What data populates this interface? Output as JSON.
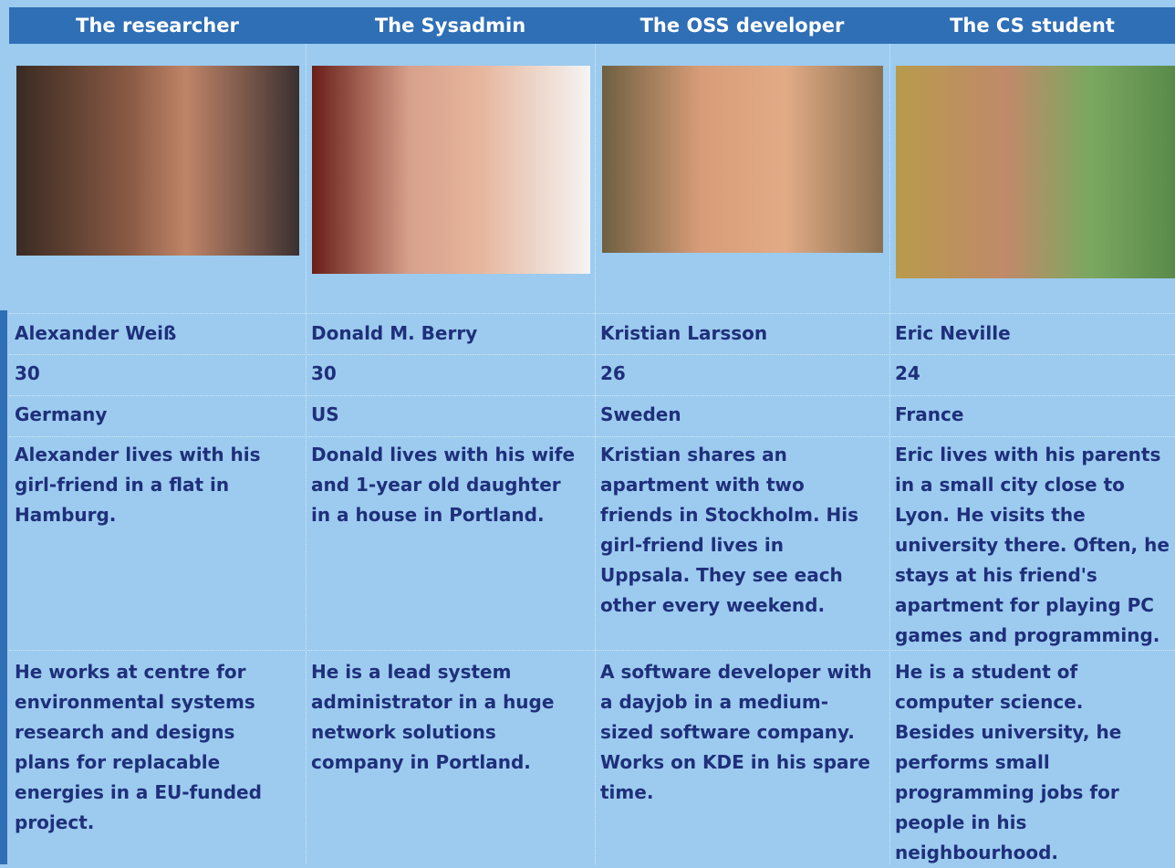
{
  "table": {
    "columns": [
      {
        "title": "The researcher",
        "name": "Alexander Weiß",
        "age": "30",
        "country": "Germany",
        "living": [
          "Alexander lives with his",
          "girl-friend in a flat in",
          "Hamburg."
        ],
        "work": [
          "He works at centre for",
          "environmental systems",
          "research and designs",
          "plans for replacable",
          "energies in a EU-funded",
          "project."
        ]
      },
      {
        "title": "The Sysadmin",
        "name": "Donald M. Berry",
        "age": "30",
        "country": "US",
        "living": [
          "Donald lives with his wife",
          "and 1-year old daughter",
          "in a house in Portland."
        ],
        "work": [
          "He is a lead system",
          "administrator in a huge",
          "network solutions",
          "company in Portland."
        ]
      },
      {
        "title": "The OSS developer",
        "name": "Kristian Larsson",
        "age": "26",
        "country": "Sweden",
        "living": [
          "Kristian shares an",
          "apartment with two",
          "friends in Stockholm. His",
          "girl-friend lives in",
          "Uppsala. They see each",
          "other every weekend."
        ],
        "work": [
          "A software developer with",
          "a dayjob in a medium-",
          "sized software company.",
          "Works on KDE in his spare",
          "time."
        ]
      },
      {
        "title": "The CS student",
        "name": "Eric Neville",
        "age": "24",
        "country": "France",
        "living": [
          "Eric lives with his parents",
          "in a small city close to",
          "Lyon. He visits the",
          "university there. Often, he",
          "stays at his friend's",
          "apartment for playing PC",
          "games and programming."
        ],
        "work": [
          "He is a student of",
          "computer science.",
          "Besides university, he",
          "performs small",
          "programming jobs for",
          "people in his",
          "neighbourhood."
        ]
      }
    ]
  }
}
